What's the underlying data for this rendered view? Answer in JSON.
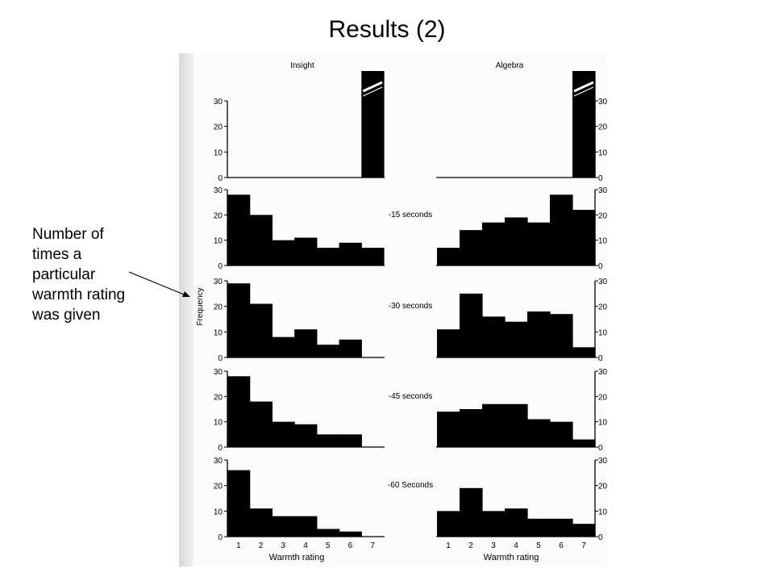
{
  "slide": {
    "title": "Results (2)",
    "annotation": [
      "Number of",
      "times a",
      "particular",
      "warmth rating",
      "was given"
    ]
  },
  "chart_data": {
    "type": "bar",
    "column_titles": [
      "Insight",
      "Algebra"
    ],
    "row_labels": [
      "",
      "-15 seconds",
      "-30 seconds",
      "-45 seconds",
      "-60 Seconds"
    ],
    "categories": [
      "1",
      "2",
      "3",
      "4",
      "5",
      "6",
      "7"
    ],
    "xlabel": "Warmth rating",
    "ylabel": "Frequency",
    "ylim": [
      0,
      30
    ],
    "yticks": [
      "0",
      "10",
      "20",
      "30"
    ],
    "panels": [
      {
        "problem": "Insight",
        "time": "",
        "values": [
          0,
          0,
          0,
          0,
          0,
          0,
          30
        ],
        "broken_axis_last": true
      },
      {
        "problem": "Algebra",
        "time": "",
        "values": [
          0,
          0,
          0,
          0,
          0,
          0,
          30
        ],
        "broken_axis_last": true
      },
      {
        "problem": "Insight",
        "time": "-15 seconds",
        "values": [
          28,
          20,
          10,
          11,
          7,
          9,
          7
        ]
      },
      {
        "problem": "Algebra",
        "time": "-15 seconds",
        "values": [
          7,
          14,
          17,
          19,
          17,
          28,
          22
        ]
      },
      {
        "problem": "Insight",
        "time": "-30 seconds",
        "values": [
          29,
          21,
          8,
          11,
          5,
          7,
          0
        ]
      },
      {
        "problem": "Algebra",
        "time": "-30 seconds",
        "values": [
          11,
          25,
          16,
          14,
          18,
          17,
          4
        ]
      },
      {
        "problem": "Insight",
        "time": "-45 seconds",
        "values": [
          28,
          18,
          10,
          9,
          5,
          5,
          0
        ]
      },
      {
        "problem": "Algebra",
        "time": "-45 seconds",
        "values": [
          14,
          15,
          17,
          17,
          11,
          10,
          3
        ]
      },
      {
        "problem": "Insight",
        "time": "-60 Seconds",
        "values": [
          26,
          11,
          8,
          8,
          3,
          2,
          0
        ]
      },
      {
        "problem": "Algebra",
        "time": "-60 Seconds",
        "values": [
          10,
          19,
          10,
          11,
          7,
          7,
          5
        ]
      }
    ],
    "colors": {
      "bar": "#000000",
      "background": "#ffffff"
    }
  }
}
